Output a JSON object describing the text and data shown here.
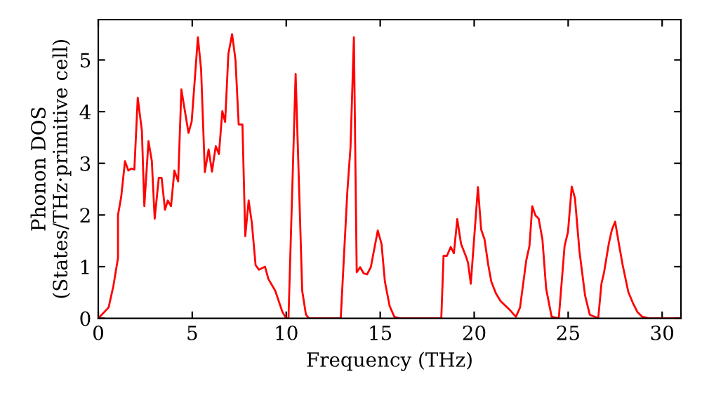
{
  "chart_data": {
    "type": "line",
    "xlabel": "Frequency (THz)",
    "ylabel": "Phonon DOS\n(States/THz·primitive cell)",
    "xlim": [
      0,
      31
    ],
    "ylim": [
      0,
      5.78
    ],
    "xticks": [
      0,
      5,
      10,
      15,
      20,
      25,
      30
    ],
    "yticks": [
      0,
      1,
      2,
      3,
      4,
      5
    ],
    "grid": false,
    "legend": false,
    "marker": "none",
    "line_style": "solid",
    "series": [
      {
        "color": "#ff0000",
        "x": [
          0,
          0.55,
          0.8,
          1.05,
          1.05,
          1.22,
          1.42,
          1.6,
          1.75,
          1.92,
          2.1,
          2.32,
          2.45,
          2.67,
          2.85,
          3.0,
          3.22,
          3.37,
          3.55,
          3.7,
          3.87,
          4.05,
          4.25,
          4.42,
          4.8,
          4.97,
          5.3,
          5.47,
          5.67,
          5.87,
          6.05,
          6.25,
          6.42,
          6.6,
          6.75,
          6.92,
          7.12,
          7.3,
          7.47,
          7.67,
          7.82,
          8.0,
          8.17,
          8.37,
          8.55,
          8.87,
          9.05,
          9.42,
          9.8,
          10.0,
          10.12,
          10.5,
          10.85,
          11.05,
          11.2,
          12.9,
          13.25,
          13.42,
          13.6,
          13.75,
          13.93,
          14.12,
          14.3,
          14.5,
          14.87,
          15.07,
          15.25,
          15.5,
          15.75,
          16.0,
          18.25,
          18.37,
          18.55,
          18.75,
          18.92,
          19.1,
          19.3,
          19.55,
          19.67,
          19.82,
          20.2,
          20.37,
          20.55,
          20.75,
          20.91,
          21.16,
          21.41,
          21.9,
          22.22,
          22.44,
          22.77,
          22.94,
          23.09,
          23.26,
          23.43,
          23.63,
          23.83,
          24.12,
          24.5,
          24.81,
          24.99,
          25.19,
          25.36,
          25.6,
          25.9,
          26.15,
          26.6,
          26.77,
          26.91,
          27.16,
          27.33,
          27.5,
          27.7,
          27.9,
          28.2,
          28.44,
          28.69,
          28.94,
          29.3,
          30.9
        ],
        "values": [
          0,
          0.21,
          0.62,
          1.17,
          2.0,
          2.35,
          3.04,
          2.86,
          2.9,
          2.88,
          4.27,
          3.63,
          2.17,
          3.43,
          3.04,
          1.93,
          2.72,
          2.72,
          2.1,
          2.28,
          2.17,
          2.86,
          2.65,
          4.43,
          3.59,
          3.81,
          5.44,
          4.82,
          2.83,
          3.27,
          2.84,
          3.33,
          3.18,
          4.01,
          3.8,
          5.11,
          5.5,
          5.0,
          3.75,
          3.75,
          1.59,
          2.28,
          1.85,
          1.03,
          0.94,
          1.0,
          0.76,
          0.53,
          0.12,
          0,
          0,
          4.73,
          0.53,
          0.07,
          0,
          0,
          2.45,
          3.31,
          5.44,
          0.89,
          0.99,
          0.87,
          0.85,
          0.99,
          1.7,
          1.44,
          0.71,
          0.24,
          0.03,
          0,
          0,
          1.21,
          1.21,
          1.38,
          1.26,
          1.92,
          1.44,
          1.21,
          1.08,
          0.67,
          2.54,
          1.72,
          1.53,
          1.03,
          0.71,
          0.48,
          0.33,
          0.16,
          0.03,
          0.21,
          1.12,
          1.4,
          2.17,
          1.99,
          1.93,
          1.53,
          0.57,
          0.03,
          0,
          1.4,
          1.67,
          2.55,
          2.33,
          1.3,
          0.44,
          0.07,
          0,
          0.67,
          0.89,
          1.44,
          1.72,
          1.87,
          1.44,
          1.03,
          0.51,
          0.3,
          0.12,
          0.03,
          0,
          0
        ]
      }
    ]
  }
}
